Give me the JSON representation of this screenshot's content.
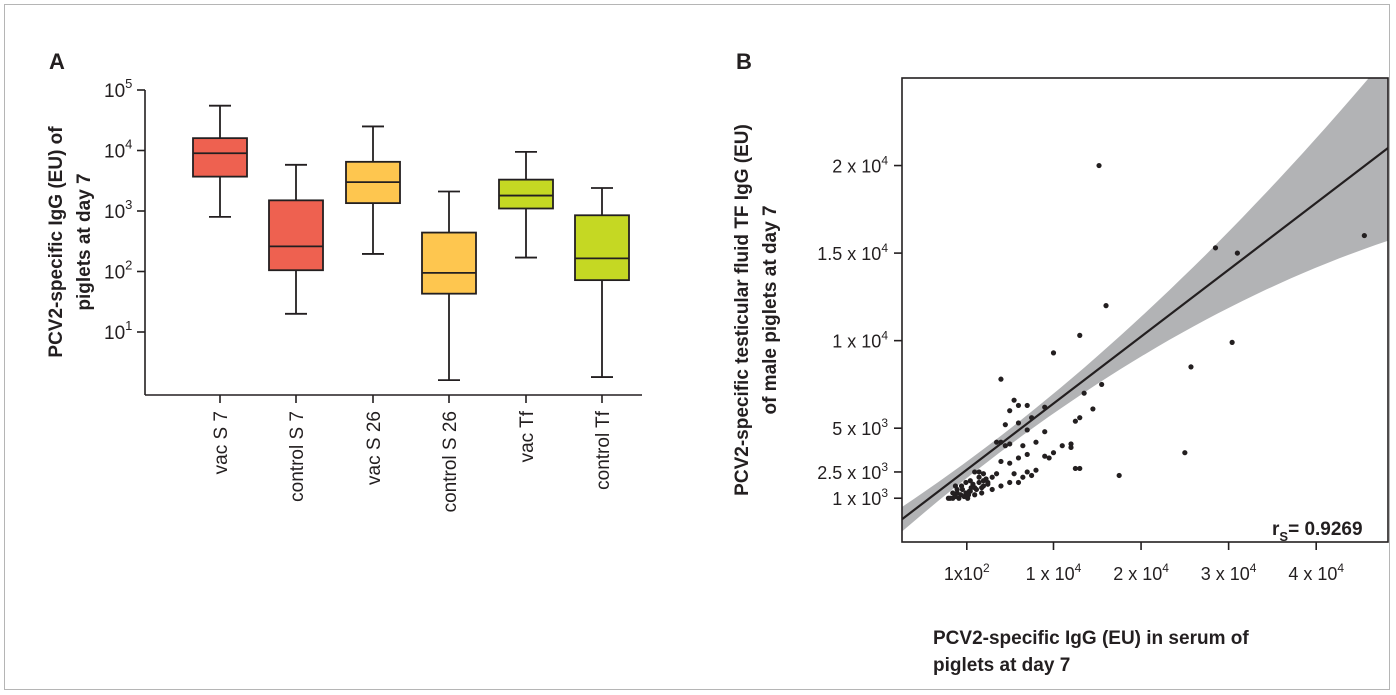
{
  "panel_a": {
    "letter": "A"
  },
  "panel_b": {
    "letter": "B",
    "stat_prefix": "r",
    "stat_sub": "S",
    "stat_value": "= 0.9269"
  },
  "colors": {
    "red": "#ee6150",
    "orange": "#fec64f",
    "green": "#c5d823",
    "band": "#b2b3b5",
    "line": "#231f20"
  },
  "chart_data": [
    {
      "type": "box",
      "panel": "A",
      "yscale": "log",
      "ylabel_lines": [
        "PCV2-specific IgG (EU) of",
        "piglets at day 7"
      ],
      "yticks": [
        {
          "base": "10",
          "exp": "1"
        },
        {
          "base": "10",
          "exp": "2"
        },
        {
          "base": "10",
          "exp": "3"
        },
        {
          "base": "10",
          "exp": "4"
        },
        {
          "base": "10",
          "exp": "5"
        }
      ],
      "ytick_values": [
        10,
        100,
        1000,
        10000,
        100000
      ],
      "categories": [
        "vac S 7",
        "control S 7",
        "vac S 26",
        "control S 26",
        "vac Tf",
        "control Tf"
      ],
      "boxes": [
        {
          "min": 800,
          "q1": 3700,
          "median": 9000,
          "q3": 16000,
          "max": 55000,
          "color": "#ee6150"
        },
        {
          "min": 20,
          "q1": 105,
          "median": 260,
          "q3": 1500,
          "max": 5800,
          "color": "#ee6150"
        },
        {
          "min": 195,
          "q1": 1350,
          "median": 3000,
          "q3": 6500,
          "max": 25000,
          "color": "#fec64f"
        },
        {
          "min": 1.6,
          "q1": 43,
          "median": 95,
          "q3": 440,
          "max": 2100,
          "color": "#fec64f"
        },
        {
          "min": 170,
          "q1": 1100,
          "median": 1800,
          "q3": 3300,
          "max": 9500,
          "color": "#c5d823"
        },
        {
          "min": 1.8,
          "q1": 72,
          "median": 165,
          "q3": 850,
          "max": 2400,
          "color": "#c5d823"
        }
      ]
    },
    {
      "type": "scatter",
      "panel": "B",
      "ylabel_lines": [
        "PCV2-specific testicular fluid TF IgG (EU)",
        "of male piglets at day 7"
      ],
      "xlabel_lines": [
        "PCV2-specific IgG (EU) in serum of",
        "piglets at day 7"
      ],
      "xticks": [
        {
          "value": 100,
          "mant": "1x10",
          "exp": "2"
        },
        {
          "value": 10000,
          "mant": "1 x 10",
          "exp": "4"
        },
        {
          "value": 20000,
          "mant": "2 x 10",
          "exp": "4"
        },
        {
          "value": 30000,
          "mant": "3 x 10",
          "exp": "4"
        },
        {
          "value": 40000,
          "mant": "4 x 10",
          "exp": "4"
        }
      ],
      "yticks": [
        {
          "value": 1000,
          "mant": "1 x 10",
          "exp": "3"
        },
        {
          "value": 2500,
          "mant": "2.5 x 10",
          "exp": "3"
        },
        {
          "value": 5000,
          "mant": "5 x 10",
          "exp": "3"
        },
        {
          "value": 10000,
          "mant": "1 x 10",
          "exp": "4"
        },
        {
          "value": 15000,
          "mant": "1.5 x 10",
          "exp": "4"
        },
        {
          "value": 20000,
          "mant": "2 x 10",
          "exp": "4"
        }
      ],
      "xlim": [
        -7300,
        48200
      ],
      "ylim": [
        -1500,
        25000
      ],
      "fit_line": [
        [
          -7300,
          -200
        ],
        [
          48200,
          21000
        ]
      ],
      "points": [
        [
          -2000,
          1000
        ],
        [
          -1800,
          1000
        ],
        [
          -1500,
          1000
        ],
        [
          -1200,
          1100
        ],
        [
          -1000,
          1300
        ],
        [
          -800,
          1000
        ],
        [
          -600,
          1200
        ],
        [
          -400,
          1500
        ],
        [
          -200,
          1100
        ],
        [
          0,
          1300
        ],
        [
          200,
          1000
        ],
        [
          400,
          1400
        ],
        [
          600,
          1600
        ],
        [
          800,
          1800
        ],
        [
          1000,
          1200
        ],
        [
          1200,
          1500
        ],
        [
          1500,
          1900
        ],
        [
          1800,
          1300
        ],
        [
          2000,
          1700
        ],
        [
          2300,
          2100
        ],
        [
          -1500,
          1300
        ],
        [
          -1000,
          1500
        ],
        [
          -500,
          1700
        ],
        [
          0,
          1900
        ],
        [
          500,
          1400
        ],
        [
          1000,
          1600
        ],
        [
          1500,
          2200
        ],
        [
          2000,
          2000
        ],
        [
          2500,
          1900
        ],
        [
          500,
          2000
        ],
        [
          1000,
          2500
        ],
        [
          1500,
          2500
        ],
        [
          2000,
          2400
        ],
        [
          3000,
          2200
        ],
        [
          3500,
          2400
        ],
        [
          3000,
          1500
        ],
        [
          2500,
          1800
        ],
        [
          -1200,
          1700
        ],
        [
          300,
          1200
        ],
        [
          1800,
          1600
        ],
        [
          4000,
          1700
        ],
        [
          5000,
          1900
        ],
        [
          5500,
          2400
        ],
        [
          6000,
          1900
        ],
        [
          6500,
          2200
        ],
        [
          7000,
          2500
        ],
        [
          7500,
          2300
        ],
        [
          8000,
          2600
        ],
        [
          5000,
          3000
        ],
        [
          6000,
          3300
        ],
        [
          7000,
          3500
        ],
        [
          4000,
          3100
        ],
        [
          4500,
          4000
        ],
        [
          4000,
          4200
        ],
        [
          5000,
          4100
        ],
        [
          3500,
          4200
        ],
        [
          6500,
          4000
        ],
        [
          8000,
          4200
        ],
        [
          7000,
          4900
        ],
        [
          7500,
          5600
        ],
        [
          6000,
          5300
        ],
        [
          5000,
          6000
        ],
        [
          4500,
          5200
        ],
        [
          5500,
          6600
        ],
        [
          6000,
          6300
        ],
        [
          7000,
          6300
        ],
        [
          9000,
          3400
        ],
        [
          9000,
          6200
        ],
        [
          9000,
          4800
        ],
        [
          11000,
          4000
        ],
        [
          10000,
          3600
        ],
        [
          9500,
          3300
        ],
        [
          12000,
          3900
        ],
        [
          12500,
          2700
        ],
        [
          13000,
          2700
        ],
        [
          14500,
          6100
        ],
        [
          13500,
          7000
        ],
        [
          13000,
          5600
        ],
        [
          12500,
          5400
        ],
        [
          12000,
          4100
        ],
        [
          10000,
          9300
        ],
        [
          15500,
          7500
        ],
        [
          13000,
          10300
        ],
        [
          16000,
          12000
        ],
        [
          4000,
          7800
        ],
        [
          17500,
          2300
        ],
        [
          25000,
          3600
        ],
        [
          25700,
          8500
        ],
        [
          30400,
          9900
        ],
        [
          28500,
          15300
        ],
        [
          31000,
          15000
        ],
        [
          45500,
          16000
        ],
        [
          15200,
          20000
        ]
      ]
    }
  ]
}
